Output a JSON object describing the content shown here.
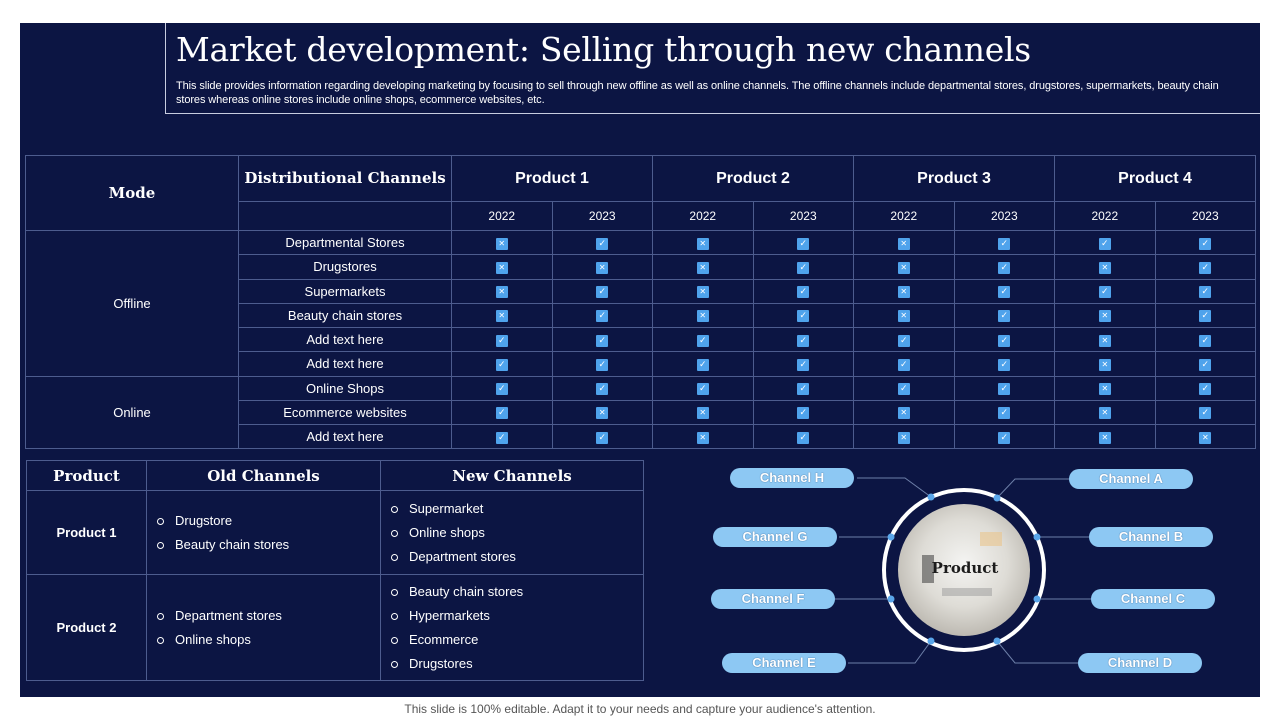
{
  "title": "Market development: Selling through new channels",
  "description": "This slide provides information regarding developing marketing by focusing to sell through new offline as well as online channels. The offline channels include departmental stores, drugstores, supermarkets, beauty chain stores whereas online stores include online shops, ecommerce websites, etc.",
  "channel_table": {
    "headers": {
      "mode": "Mode",
      "channels": "Distributional Channels",
      "products": [
        "Product 1",
        "Product 2",
        "Product 3",
        "Product 4"
      ]
    },
    "years": [
      "2022",
      "2023",
      "2022",
      "2023",
      "2022",
      "2023",
      "2022",
      "2023"
    ],
    "modes": {
      "offline": "Offline",
      "online": "Online"
    },
    "rows": [
      {
        "channel": "Departmental Stores",
        "marks": [
          "x",
          "check",
          "x",
          "check",
          "x",
          "check",
          "check",
          "check"
        ]
      },
      {
        "channel": "Drugstores",
        "marks": [
          "x",
          "x",
          "x",
          "check",
          "x",
          "check",
          "x",
          "check"
        ]
      },
      {
        "channel": "Supermarkets",
        "marks": [
          "x",
          "check",
          "x",
          "check",
          "x",
          "check",
          "check",
          "check"
        ]
      },
      {
        "channel": "Beauty chain stores",
        "marks": [
          "x",
          "check",
          "x",
          "check",
          "x",
          "check",
          "x",
          "check"
        ]
      },
      {
        "channel": "Add text here",
        "marks": [
          "check",
          "check",
          "check",
          "check",
          "check",
          "check",
          "x",
          "check"
        ]
      },
      {
        "channel": "Add text here",
        "marks": [
          "check",
          "check",
          "check",
          "check",
          "check",
          "check",
          "x",
          "check"
        ]
      },
      {
        "channel": "Online Shops",
        "marks": [
          "check",
          "check",
          "check",
          "check",
          "check",
          "check",
          "x",
          "check"
        ]
      },
      {
        "channel": "Ecommerce websites",
        "marks": [
          "check",
          "x",
          "x",
          "check",
          "x",
          "check",
          "x",
          "check"
        ]
      },
      {
        "channel": "Add text here",
        "marks": [
          "check",
          "check",
          "x",
          "check",
          "x",
          "check",
          "x",
          "x"
        ]
      }
    ]
  },
  "product_table": {
    "headers": {
      "product": "Product",
      "old": "Old Channels",
      "new": "New Channels"
    },
    "rows": [
      {
        "product": "Product 1",
        "old": [
          "Drugstore",
          "Beauty chain stores"
        ],
        "new": [
          "Supermarket",
          "Online shops",
          "Department stores"
        ]
      },
      {
        "product": "Product 2",
        "old": [
          "Department stores",
          "Online shops"
        ],
        "new": [
          "Beauty chain stores",
          "Hypermarkets",
          "Ecommerce",
          "Drugstores"
        ]
      }
    ]
  },
  "diagram": {
    "center_label": "Product",
    "channels": {
      "h": "Channel H",
      "a": "Channel A",
      "g": "Channel G",
      "b": "Channel B",
      "f": "Channel F",
      "c": "Channel C",
      "e": "Channel E",
      "d": "Channel D"
    }
  },
  "footer": "This slide is 100% editable. Adapt it to your needs and capture your audience's attention.",
  "colors": {
    "background": "#0c1543",
    "accent": "#4fa3ec",
    "pill": "#8dc8f3",
    "border": "#4d5c8e"
  }
}
